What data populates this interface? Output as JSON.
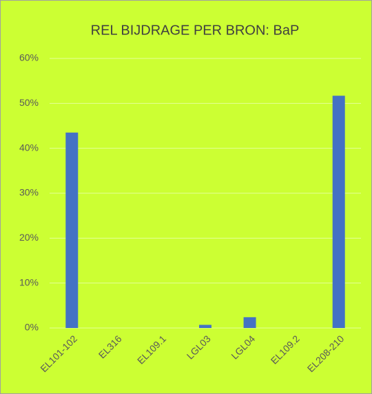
{
  "chart_data": {
    "type": "bar",
    "title": "REL BIJDRAGE PER BRON:  BaP",
    "categories": [
      "EL101-102",
      "EL316",
      "EL109.1",
      "LGL03",
      "LGL04",
      "EL109.2",
      "EL208-210"
    ],
    "values": [
      43.5,
      0,
      0,
      0.7,
      2.4,
      0,
      51.7
    ],
    "color": "#4472c4",
    "ylim": [
      0,
      60
    ],
    "yticks": [
      {
        "value": 0,
        "label": "0%"
      },
      {
        "value": 10,
        "label": "10%"
      },
      {
        "value": 20,
        "label": "20%"
      },
      {
        "value": 30,
        "label": "30%"
      },
      {
        "value": 40,
        "label": "40%"
      },
      {
        "value": 50,
        "label": "50%"
      },
      {
        "value": 60,
        "label": "60%"
      }
    ],
    "grid": true
  }
}
